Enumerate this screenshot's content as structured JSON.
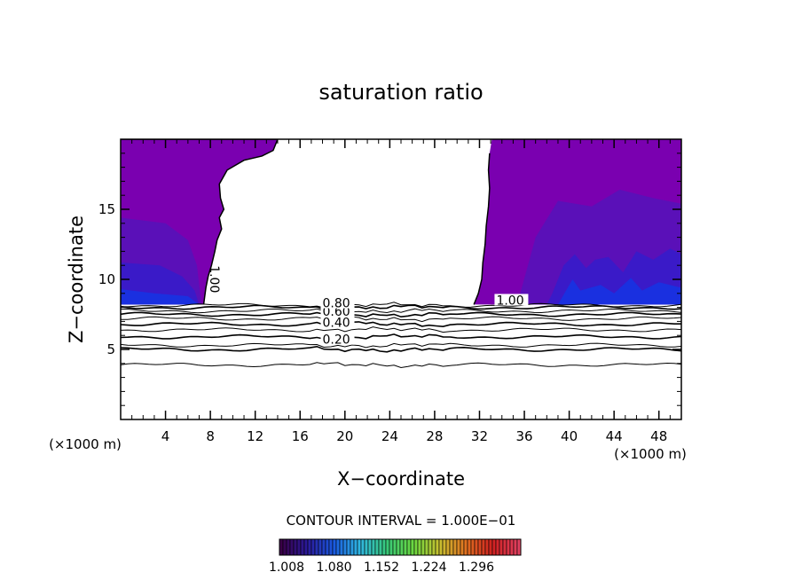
{
  "chart_data": {
    "type": "contour",
    "title": "saturation ratio",
    "xlabel": "X−coordinate",
    "ylabel": "Z−coordinate",
    "x_unit_left": "(×1000 m)",
    "x_unit_right": "(×1000 m)",
    "xlim": [
      0,
      50
    ],
    "ylim": [
      0,
      20
    ],
    "x_ticks": [
      4,
      8,
      12,
      16,
      20,
      24,
      28,
      32,
      36,
      40,
      44,
      48
    ],
    "y_ticks": [
      5,
      10,
      15
    ],
    "contour_interval_text": "CONTOUR INTERVAL = 1.000E−01",
    "colorbar": {
      "labels": [
        "1.008",
        "1.080",
        "1.152",
        "1.224",
        "1.296"
      ],
      "range": [
        1.0,
        1.33
      ],
      "colors": [
        "#3a0048",
        "#2a1a9a",
        "#1a5ae0",
        "#30b8e0",
        "#38c878",
        "#6ad840",
        "#c8c030",
        "#e07020",
        "#d02020",
        "#e04060"
      ]
    },
    "contour_labels": [
      {
        "text": "0.20",
        "x": 18,
        "y": 5.4
      },
      {
        "text": "0.40",
        "x": 18,
        "y": 6.6
      },
      {
        "text": "0.60",
        "x": 18,
        "y": 7.4
      },
      {
        "text": "0.80",
        "x": 18,
        "y": 8.0
      },
      {
        "text": "1.00",
        "x": 8,
        "y": 11
      },
      {
        "text": "1.00",
        "x": 33.5,
        "y": 8.2
      }
    ],
    "contour_lines_y": [
      3.9,
      5.0,
      5.3,
      5.9,
      6.4,
      6.8,
      7.2,
      7.5,
      7.75,
      8.0,
      8.15
    ],
    "supersaturated_regions": [
      {
        "x": [
          0,
          14
        ],
        "y": [
          8.2,
          20
        ]
      },
      {
        "x": [
          31.5,
          50
        ],
        "y": [
          8.2,
          20
        ]
      }
    ]
  },
  "colors": {
    "region_main": "#7a00b0",
    "region_mid": "#5a10b8",
    "region_dark": "#3a1ac8",
    "region_blue": "#1a30e0",
    "line": "#000000"
  }
}
